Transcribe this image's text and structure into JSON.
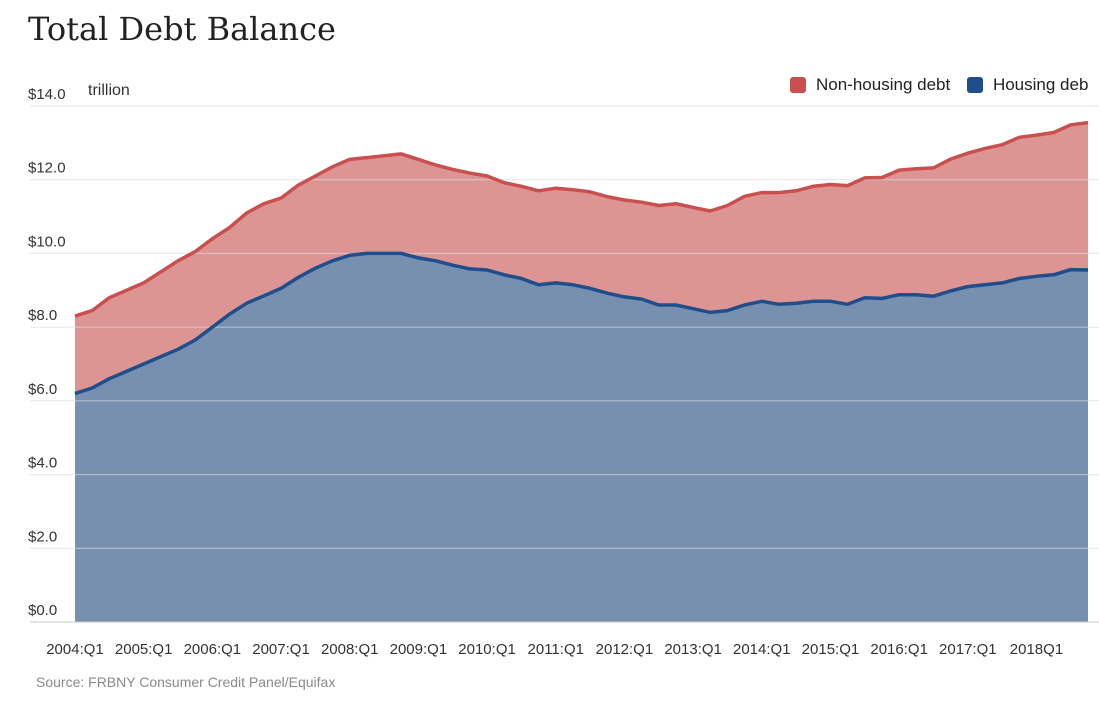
{
  "chart_data": {
    "type": "area",
    "title": "Total Debt Balance",
    "unit_label": "trillion",
    "source": "Source: FRBNY Consumer Credit Panel/Equifax",
    "stacked": true,
    "y_ticks": [
      "$0.0",
      "$2.0",
      "$4.0",
      "$6.0",
      "$8.0",
      "$10.0",
      "$12.0",
      "$14.0"
    ],
    "ylim": [
      0,
      14
    ],
    "x_ticks": [
      "2004:Q1",
      "2005:Q1",
      "2006:Q1",
      "2007:Q1",
      "2008:Q1",
      "2009:Q1",
      "2010:Q1",
      "2011:Q1",
      "2012:Q1",
      "2013:Q1",
      "2014:Q1",
      "2015:Q1",
      "2016:Q1",
      "2017:Q1",
      "2018Q1"
    ],
    "legend_position": "top-right",
    "grid": true,
    "series": [
      {
        "name": "Housing debt",
        "legend_label": "Housing deb",
        "color": "#1f4e8c",
        "fill": "#7890b0",
        "values": [
          6.2,
          6.35,
          6.6,
          6.8,
          7.0,
          7.2,
          7.4,
          7.65,
          8.0,
          8.35,
          8.65,
          8.85,
          9.05,
          9.35,
          9.6,
          9.8,
          9.95,
          10.0,
          10.0,
          10.0,
          9.88,
          9.8,
          9.68,
          9.58,
          9.55,
          9.42,
          9.32,
          9.15,
          9.2,
          9.15,
          9.05,
          8.92,
          8.82,
          8.76,
          8.6,
          8.6,
          8.5,
          8.4,
          8.45,
          8.6,
          8.7,
          8.62,
          8.65,
          8.7,
          8.7,
          8.62,
          8.8,
          8.78,
          8.88,
          8.88,
          8.84,
          8.98,
          9.1,
          9.15,
          9.2,
          9.32,
          9.38,
          9.42,
          9.56,
          9.55
        ]
      },
      {
        "name": "Non-housing debt",
        "legend_label": "Non-housing debt",
        "color": "#c9504f",
        "fill": "#dc9593",
        "values": [
          2.1,
          2.1,
          2.2,
          2.2,
          2.2,
          2.3,
          2.4,
          2.4,
          2.4,
          2.35,
          2.45,
          2.5,
          2.45,
          2.5,
          2.5,
          2.55,
          2.6,
          2.6,
          2.65,
          2.7,
          2.67,
          2.6,
          2.6,
          2.6,
          2.55,
          2.5,
          2.5,
          2.55,
          2.57,
          2.58,
          2.62,
          2.62,
          2.63,
          2.63,
          2.7,
          2.75,
          2.75,
          2.75,
          2.85,
          2.95,
          2.95,
          3.03,
          3.05,
          3.12,
          3.17,
          3.22,
          3.25,
          3.28,
          3.38,
          3.42,
          3.48,
          3.58,
          3.62,
          3.7,
          3.75,
          3.83,
          3.83,
          3.86,
          3.93,
          4.0
        ]
      }
    ]
  }
}
